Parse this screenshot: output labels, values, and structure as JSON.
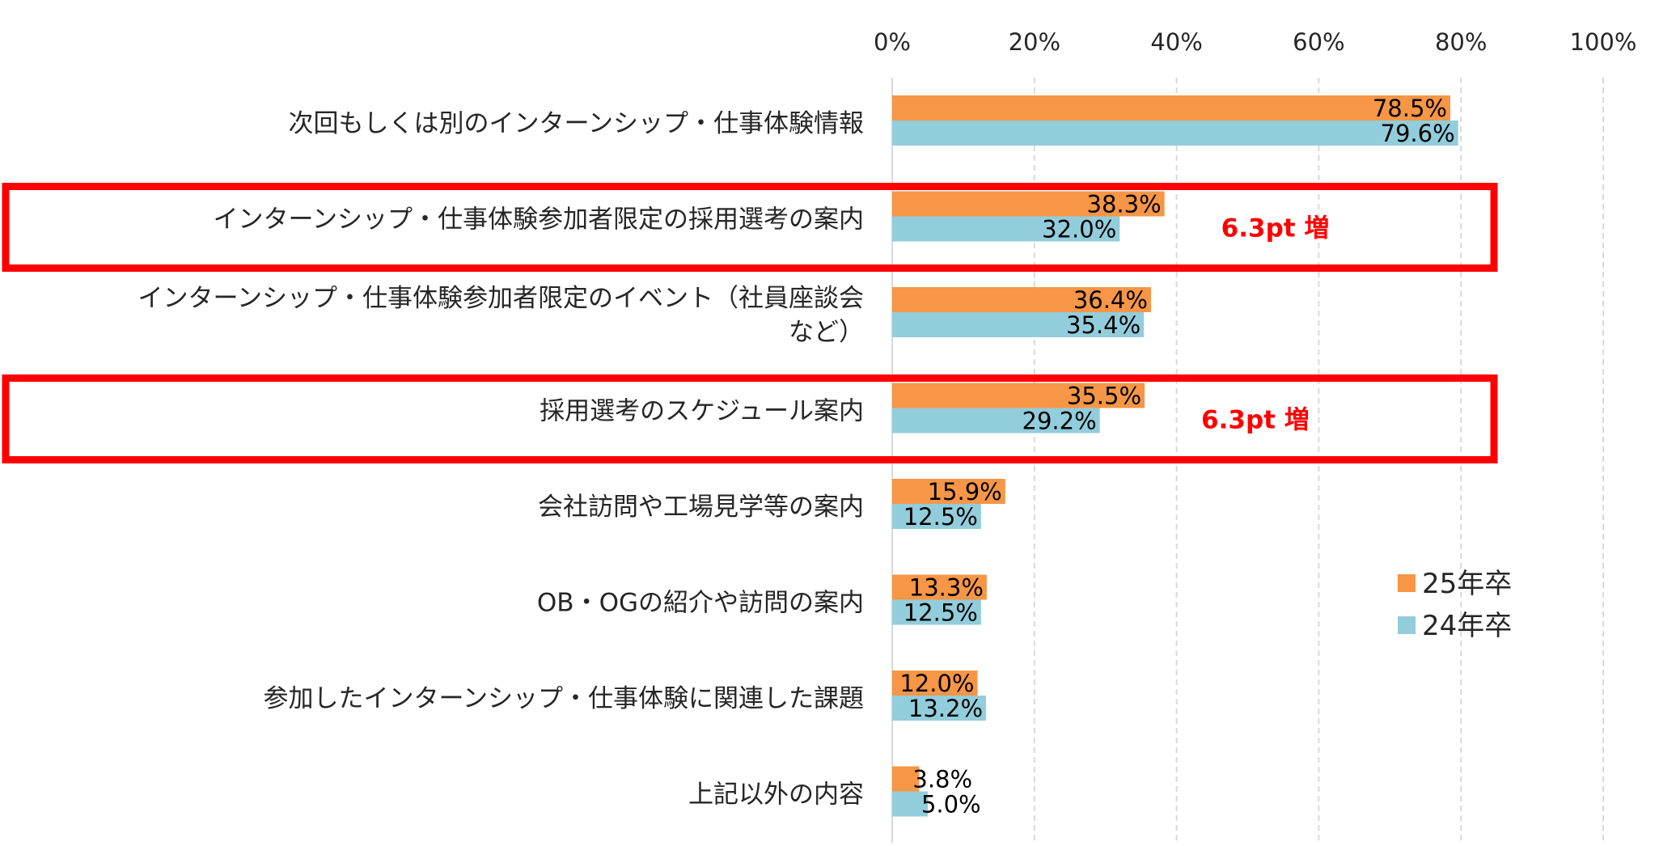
{
  "chart_data": {
    "type": "bar",
    "orientation": "horizontal",
    "categories": [
      "次回もしくは別のインターンシップ・仕事体験情報",
      "インターンシップ・仕事体験参加者限定の採用選考の案内",
      "インターンシップ・仕事体験参加者限定のイベント（社員座談会など）",
      "採用選考のスケジュール案内",
      "会社訪問や工場見学等の案内",
      "OB・OGの紹介や訪問の案内",
      "参加したインターンシップ・仕事体験に関連した課題",
      "上記以外の内容"
    ],
    "category_lines": [
      [
        "次回もしくは別のインターンシップ・仕事体験情報"
      ],
      [
        "インターンシップ・仕事体験参加者限定の採用選考の案内"
      ],
      [
        "インターンシップ・仕事体験参加者限定のイベント（社員座談会",
        "など）"
      ],
      [
        "採用選考のスケジュール案内"
      ],
      [
        "会社訪問や工場見学等の案内"
      ],
      [
        "OB・OGの紹介や訪問の案内"
      ],
      [
        "参加したインターンシップ・仕事体験に関連した課題"
      ],
      [
        "上記以外の内容"
      ]
    ],
    "series": [
      {
        "name": "25年卒",
        "color": "#f79646",
        "values": [
          78.5,
          38.3,
          36.4,
          35.5,
          15.9,
          13.3,
          12.0,
          3.8
        ],
        "labels": [
          "78.5%",
          "38.3%",
          "36.4%",
          "35.5%",
          "15.9%",
          "13.3%",
          "12.0%",
          "3.8%"
        ]
      },
      {
        "name": "24年卒",
        "color": "#92cddc",
        "values": [
          79.6,
          32.0,
          35.4,
          29.2,
          12.5,
          12.5,
          13.2,
          5.0
        ],
        "labels": [
          "79.6%",
          "32.0%",
          "35.4%",
          "29.2%",
          "12.5%",
          "12.5%",
          "13.2%",
          "5.0%"
        ]
      }
    ],
    "x_ticks": [
      "0%",
      "20%",
      "40%",
      "60%",
      "80%",
      "100%"
    ],
    "xlim": [
      0,
      100
    ],
    "grid": true,
    "legend_position": "right",
    "annotations": [
      {
        "category_index": 1,
        "text": "6.3pt 増",
        "color": "#ff0000"
      },
      {
        "category_index": 3,
        "text": "6.3pt 増",
        "color": "#ff0000"
      }
    ],
    "highlight_color": "#ff0000"
  }
}
